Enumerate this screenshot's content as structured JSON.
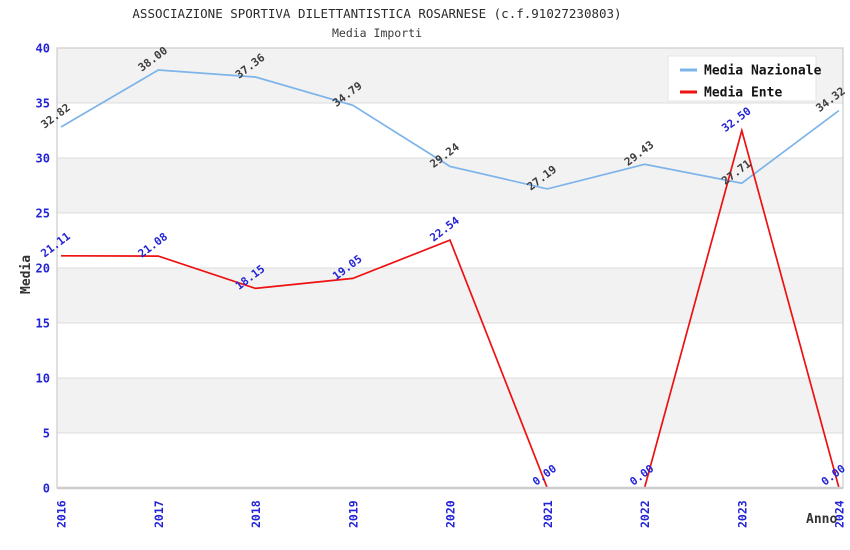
{
  "header": {
    "title": "ASSOCIAZIONE SPORTIVA DILETTANTISTICA ROSARNESE (c.f.91027230803)",
    "subtitle": "Media Importi"
  },
  "chart_data": {
    "type": "line",
    "x": [
      "2016",
      "2017",
      "2018",
      "2019",
      "2020",
      "2021",
      "2022",
      "2023",
      "2024"
    ],
    "series": [
      {
        "name": "Media Nazionale",
        "color": "#7db4ea",
        "label_color": "#3d3d3d",
        "values": [
          32.82,
          38.0,
          37.36,
          34.79,
          29.24,
          27.19,
          29.43,
          27.71,
          34.32
        ]
      },
      {
        "name": "Media Ente",
        "color": "#ee1111",
        "label_color": "#2323d7",
        "values": [
          21.11,
          21.08,
          18.15,
          19.05,
          22.54,
          0.0,
          0.0,
          32.5,
          0.0
        ]
      }
    ],
    "xlabel": "Anno",
    "ylabel": "Media",
    "ylim": [
      0,
      40
    ],
    "ytick_step": 5,
    "yticks": [
      0,
      5,
      10,
      15,
      20,
      25,
      30,
      35,
      40
    ],
    "grid": "horizontal-bands-alternating",
    "legend_position": "top-right",
    "styles": {
      "tick_color": "#2323d7",
      "band_color": "#f2f2f2",
      "gridline_color": "#dcdcdc",
      "border_color": "#cccccc",
      "legend_bg": "#ffffff",
      "legend_border": "#e5e5e5",
      "legend_text_color": "#141414",
      "axis_title_color": "#333333"
    }
  }
}
